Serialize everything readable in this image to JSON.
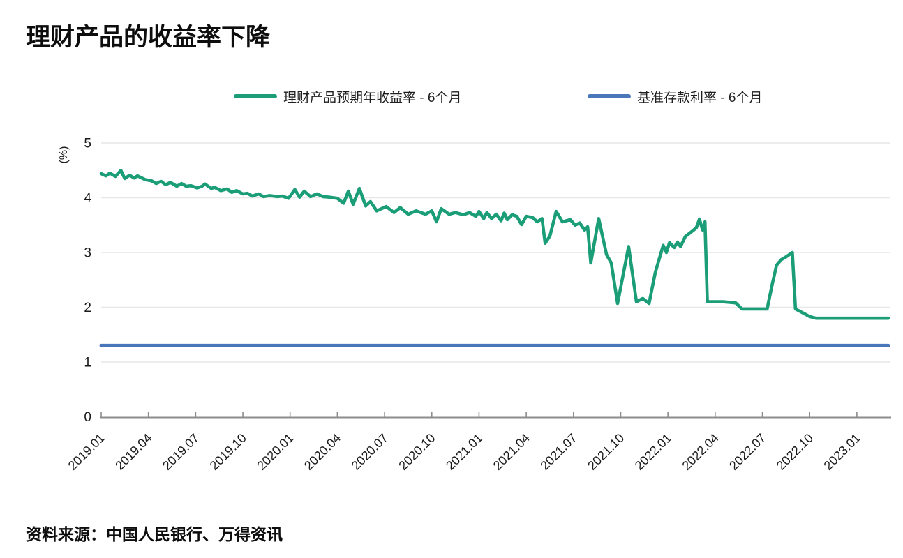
{
  "title": "理财产品的收益率下降",
  "source_note": "资料来源：中国人民银行、万得资讯",
  "colors": {
    "wmp_line": "#1b9e77",
    "benchmark_line": "#4a77b9",
    "grid": "#e7e7e7",
    "axis": "#8c8c8c",
    "tick_text": "#1a1a1a"
  },
  "legend": [
    {
      "label": "理财产品预期年收益率 - 6个月",
      "color": "#1b9e77"
    },
    {
      "label": "基准存款利率 - 6个月",
      "color": "#4a77b9"
    }
  ],
  "chart_data": {
    "type": "line",
    "title": "理财产品的收益率下降",
    "xlabel": "",
    "ylabel": "(%)",
    "ylim": [
      0,
      5
    ],
    "yticks": [
      0,
      1,
      2,
      3,
      4,
      5
    ],
    "grid": "horizontal",
    "legend_position": "top",
    "x_unit": "months since 2019.01",
    "xlim": [
      0,
      50
    ],
    "xticks": {
      "positions": [
        0,
        3,
        6,
        9,
        12,
        15,
        18,
        21,
        24,
        27,
        30,
        33,
        36,
        39,
        42,
        45,
        48
      ],
      "labels": [
        "2019.01",
        "2019.04",
        "2019.07",
        "2019.10",
        "2020.01",
        "2020.04",
        "2020.07",
        "2020.10",
        "2021.01",
        "2021.04",
        "2021.07",
        "2021.10",
        "2022.01",
        "2022.04",
        "2022.07",
        "2022.10",
        "2023.01"
      ]
    },
    "series": [
      {
        "name": "理财产品预期年收益率 - 6个月",
        "color": "#1b9e77",
        "points": [
          [
            0,
            4.44
          ],
          [
            0.3,
            4.4
          ],
          [
            0.55,
            4.45
          ],
          [
            0.9,
            4.39
          ],
          [
            1.25,
            4.5
          ],
          [
            1.5,
            4.35
          ],
          [
            1.8,
            4.41
          ],
          [
            2.1,
            4.36
          ],
          [
            2.3,
            4.4
          ],
          [
            2.8,
            4.33
          ],
          [
            3.2,
            4.31
          ],
          [
            3.5,
            4.26
          ],
          [
            3.8,
            4.3
          ],
          [
            4.1,
            4.24
          ],
          [
            4.4,
            4.28
          ],
          [
            4.8,
            4.21
          ],
          [
            5.1,
            4.26
          ],
          [
            5.4,
            4.21
          ],
          [
            5.7,
            4.22
          ],
          [
            6.1,
            4.18
          ],
          [
            6.4,
            4.21
          ],
          [
            6.6,
            4.25
          ],
          [
            7.0,
            4.17
          ],
          [
            7.2,
            4.19
          ],
          [
            7.6,
            4.13
          ],
          [
            8.0,
            4.16
          ],
          [
            8.3,
            4.1
          ],
          [
            8.6,
            4.13
          ],
          [
            9.0,
            4.07
          ],
          [
            9.3,
            4.08
          ],
          [
            9.6,
            4.03
          ],
          [
            10.0,
            4.07
          ],
          [
            10.3,
            4.02
          ],
          [
            10.7,
            4.04
          ],
          [
            11.2,
            4.02
          ],
          [
            11.5,
            4.03
          ],
          [
            11.9,
            3.99
          ],
          [
            12.3,
            4.15
          ],
          [
            12.6,
            4.01
          ],
          [
            12.9,
            4.12
          ],
          [
            13.3,
            4.02
          ],
          [
            13.7,
            4.07
          ],
          [
            14.1,
            4.02
          ],
          [
            14.5,
            4.01
          ],
          [
            15.0,
            3.99
          ],
          [
            15.4,
            3.9
          ],
          [
            15.7,
            4.12
          ],
          [
            16.0,
            3.88
          ],
          [
            16.4,
            4.17
          ],
          [
            16.8,
            3.85
          ],
          [
            17.1,
            3.93
          ],
          [
            17.5,
            3.76
          ],
          [
            18.1,
            3.84
          ],
          [
            18.6,
            3.73
          ],
          [
            19.0,
            3.82
          ],
          [
            19.5,
            3.7
          ],
          [
            20.0,
            3.76
          ],
          [
            20.6,
            3.7
          ],
          [
            21.0,
            3.76
          ],
          [
            21.3,
            3.56
          ],
          [
            21.6,
            3.8
          ],
          [
            22.1,
            3.7
          ],
          [
            22.5,
            3.73
          ],
          [
            23.0,
            3.69
          ],
          [
            23.4,
            3.73
          ],
          [
            23.8,
            3.66
          ],
          [
            24.0,
            3.75
          ],
          [
            24.3,
            3.62
          ],
          [
            24.5,
            3.73
          ],
          [
            24.8,
            3.62
          ],
          [
            25.1,
            3.7
          ],
          [
            25.4,
            3.58
          ],
          [
            25.6,
            3.72
          ],
          [
            25.8,
            3.6
          ],
          [
            26.1,
            3.69
          ],
          [
            26.4,
            3.66
          ],
          [
            26.7,
            3.51
          ],
          [
            27.0,
            3.66
          ],
          [
            27.4,
            3.64
          ],
          [
            27.7,
            3.56
          ],
          [
            28.0,
            3.62
          ],
          [
            28.2,
            3.17
          ],
          [
            28.5,
            3.3
          ],
          [
            28.9,
            3.75
          ],
          [
            29.3,
            3.56
          ],
          [
            29.8,
            3.6
          ],
          [
            30.1,
            3.5
          ],
          [
            30.4,
            3.54
          ],
          [
            30.7,
            3.41
          ],
          [
            30.9,
            3.47
          ],
          [
            31.1,
            2.81
          ],
          [
            31.6,
            3.62
          ],
          [
            32.1,
            2.96
          ],
          [
            32.4,
            2.81
          ],
          [
            32.8,
            2.07
          ],
          [
            33.5,
            3.11
          ],
          [
            34.0,
            2.1
          ],
          [
            34.4,
            2.16
          ],
          [
            34.8,
            2.07
          ],
          [
            35.2,
            2.64
          ],
          [
            35.7,
            3.13
          ],
          [
            35.9,
            3.0
          ],
          [
            36.1,
            3.18
          ],
          [
            36.4,
            3.09
          ],
          [
            36.6,
            3.19
          ],
          [
            36.8,
            3.11
          ],
          [
            37.1,
            3.29
          ],
          [
            37.5,
            3.38
          ],
          [
            37.8,
            3.45
          ],
          [
            38.0,
            3.61
          ],
          [
            38.2,
            3.41
          ],
          [
            38.35,
            3.56
          ],
          [
            38.5,
            2.1
          ],
          [
            39.5,
            2.1
          ],
          [
            40.3,
            2.08
          ],
          [
            40.7,
            1.97
          ],
          [
            42.3,
            1.97
          ],
          [
            42.6,
            2.39
          ],
          [
            42.9,
            2.77
          ],
          [
            43.2,
            2.87
          ],
          [
            43.5,
            2.92
          ],
          [
            43.9,
            3.0
          ],
          [
            44.1,
            1.97
          ],
          [
            45.0,
            1.83
          ],
          [
            45.4,
            1.8
          ],
          [
            50,
            1.8
          ]
        ]
      },
      {
        "name": "基准存款利率 - 6个月",
        "color": "#4a77b9",
        "value": 1.3,
        "points": [
          [
            0,
            1.3
          ],
          [
            50,
            1.3
          ]
        ]
      }
    ]
  }
}
